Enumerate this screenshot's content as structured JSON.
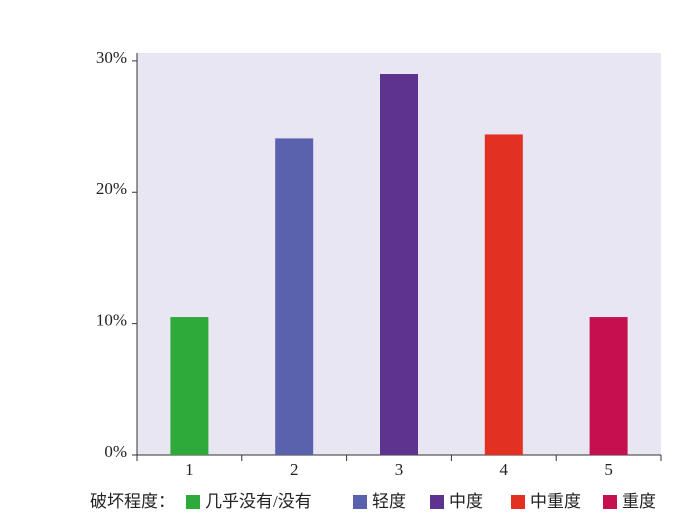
{
  "chart_data": {
    "type": "bar",
    "categories": [
      "1",
      "2",
      "3",
      "4",
      "5"
    ],
    "values": [
      10.5,
      24.1,
      29.0,
      24.4,
      10.5
    ],
    "colors": [
      "#2eaa3a",
      "#5b62ad",
      "#5c338e",
      "#e23122",
      "#c4104f"
    ],
    "ylim": [
      0,
      30.6
    ],
    "yticks": [
      {
        "value": 0,
        "label": "0%"
      },
      {
        "value": 10,
        "label": "10%"
      },
      {
        "value": 20,
        "label": "20%"
      },
      {
        "value": 30,
        "label": "30%"
      }
    ],
    "legend": {
      "title": "破坏程度：",
      "labels": [
        "几乎没有/没有",
        "轻度",
        "中度",
        "中重度",
        "重度"
      ]
    }
  }
}
